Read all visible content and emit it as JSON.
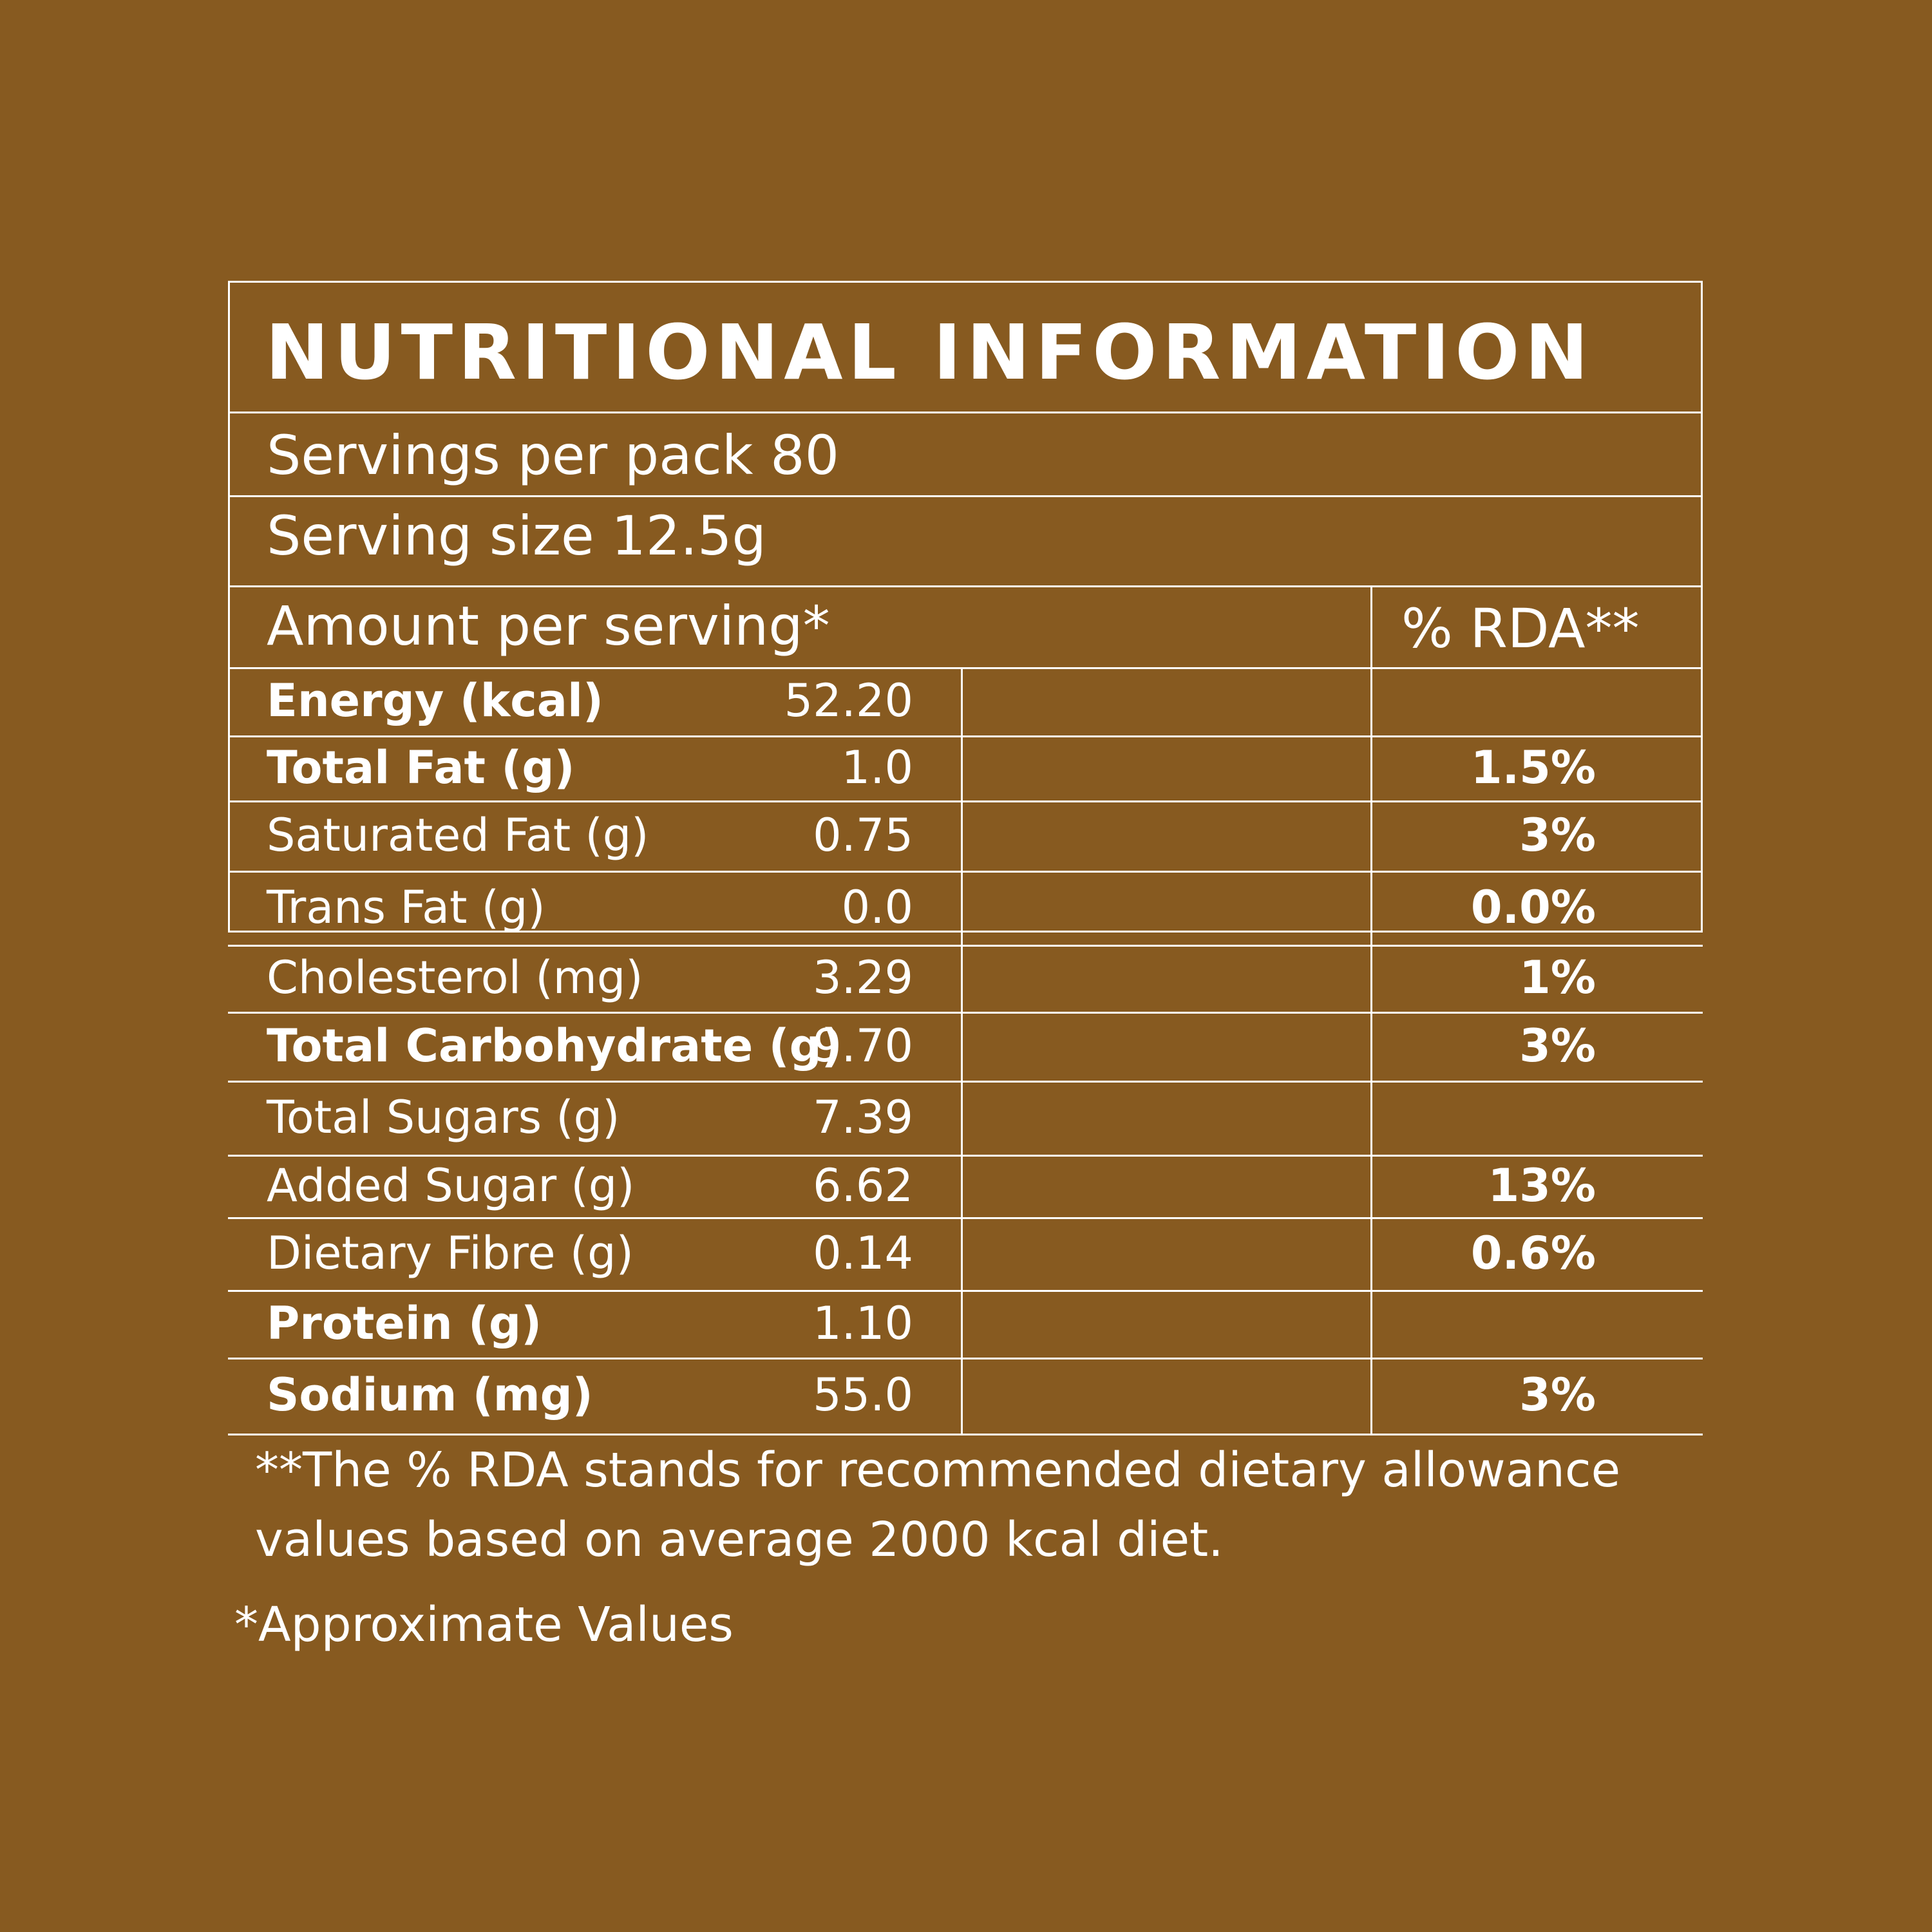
{
  "label": {
    "title": "NUTRITIONAL INFORMATION",
    "servings_per_pack": "Servings per pack 80",
    "serving_size": "Serving size 12.5g",
    "amount_header": "Amount per serving*",
    "rda_header": "% RDA**",
    "rows": [
      {
        "nutrient": "Energy (kcal)",
        "value": "52.20",
        "rda": "",
        "bold": true
      },
      {
        "nutrient": "Total Fat (g)",
        "value": "1.0",
        "rda": "1.5%",
        "bold": true
      },
      {
        "nutrient": "Saturated Fat (g)",
        "value": "0.75",
        "rda": "3%",
        "bold": false
      },
      {
        "nutrient": "Trans Fat (g)",
        "value": "0.0",
        "rda": "0.0%",
        "bold": false
      },
      {
        "nutrient": "Cholesterol (mg)",
        "value": "3.29",
        "rda": "1%",
        "bold": false
      },
      {
        "nutrient": "Total Carbohydrate (g)",
        "value": "9.70",
        "rda": "3%",
        "bold": true
      },
      {
        "nutrient": "Total Sugars (g)",
        "value": "7.39",
        "rda": "",
        "bold": false
      },
      {
        "nutrient": "Added  Sugar (g)",
        "value": "6.62",
        "rda": "13%",
        "bold": false
      },
      {
        "nutrient": "Dietary Fibre (g)",
        "value": "0.14",
        "rda": "0.6%",
        "bold": false
      },
      {
        "nutrient": "Protein (g)",
        "value": "1.10",
        "rda": "",
        "bold": true
      },
      {
        "nutrient": "Sodium (mg)",
        "value": "55.0",
        "rda": "3%",
        "bold": true
      }
    ],
    "footnote_line1": "**The % RDA stands for recommended dietary allowance",
    "footnote_line2": "values based on average 2000 kcal diet.",
    "approx_note": "*Approximate Values"
  },
  "colors": {
    "background": "#875a20",
    "foreground": "#ffffff"
  }
}
